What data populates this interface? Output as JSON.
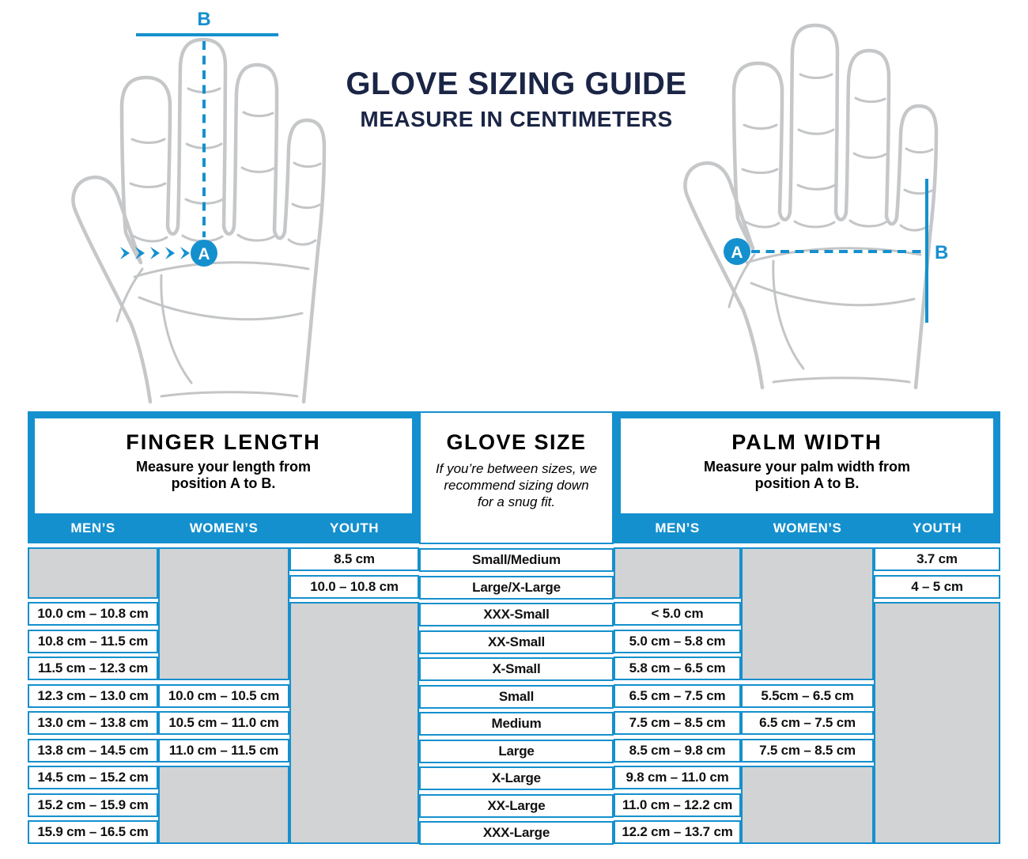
{
  "title": {
    "line1": "GLOVE SIZING GUIDE",
    "line2": "MEASURE IN CENTIMETERS"
  },
  "measurement_labels": {
    "a": "A",
    "b": "B"
  },
  "colors": {
    "blue": "#1590CE",
    "navy": "#1B2545",
    "empty_cell_gray": "#D1D3D4",
    "hand_outline_gray": "#C5C7C9"
  },
  "table": {
    "finger_length": {
      "title": "FINGER LENGTH",
      "subtitle": "Measure your length from position A to B.",
      "columns": [
        {
          "label": "MEN’S",
          "cells": [
            null,
            null,
            "10.0 cm – 10.8 cm",
            "10.8 cm – 11.5 cm",
            "11.5 cm – 12.3 cm",
            "12.3 cm – 13.0 cm",
            "13.0 cm – 13.8 cm",
            "13.8 cm – 14.5 cm",
            "14.5 cm – 15.2 cm",
            "15.2 cm – 15.9 cm",
            "15.9 cm – 16.5 cm"
          ]
        },
        {
          "label": "WOMEN’S",
          "cells": [
            null,
            null,
            null,
            null,
            null,
            "10.0 cm – 10.5 cm",
            "10.5 cm – 11.0 cm",
            "11.0 cm – 11.5 cm",
            null,
            null,
            null
          ]
        },
        {
          "label": "YOUTH",
          "cells": [
            "8.5 cm",
            "10.0 – 10.8 cm",
            null,
            null,
            null,
            null,
            null,
            null,
            null,
            null,
            null
          ]
        }
      ]
    },
    "glove_size": {
      "title": "GLOVE SIZE",
      "subtitle": "If you’re between sizes, we recommend sizing down for a snug fit.",
      "sizes": [
        "Small/Medium",
        "Large/X-Large",
        "XXX-Small",
        "XX-Small",
        "X-Small",
        "Small",
        "Medium",
        "Large",
        "X-Large",
        "XX-Large",
        "XXX-Large"
      ]
    },
    "palm_width": {
      "title": "PALM WIDTH",
      "subtitle": "Measure your palm width from position A to B.",
      "columns": [
        {
          "label": "MEN’S",
          "cells": [
            null,
            null,
            "< 5.0 cm",
            "5.0 cm – 5.8 cm",
            "5.8 cm – 6.5 cm",
            "6.5 cm – 7.5 cm",
            "7.5 cm – 8.5 cm",
            "8.5 cm – 9.8 cm",
            "9.8 cm – 11.0 cm",
            "11.0 cm – 12.2 cm",
            "12.2 cm – 13.7 cm"
          ]
        },
        {
          "label": "WOMEN’S",
          "cells": [
            null,
            null,
            null,
            null,
            null,
            "5.5cm – 6.5 cm",
            "6.5 cm – 7.5 cm",
            "7.5 cm – 8.5 cm",
            null,
            null,
            null
          ]
        },
        {
          "label": "YOUTH",
          "cells": [
            "3.7 cm",
            "4 – 5 cm",
            null,
            null,
            null,
            null,
            null,
            null,
            null,
            null,
            null
          ]
        }
      ]
    }
  }
}
